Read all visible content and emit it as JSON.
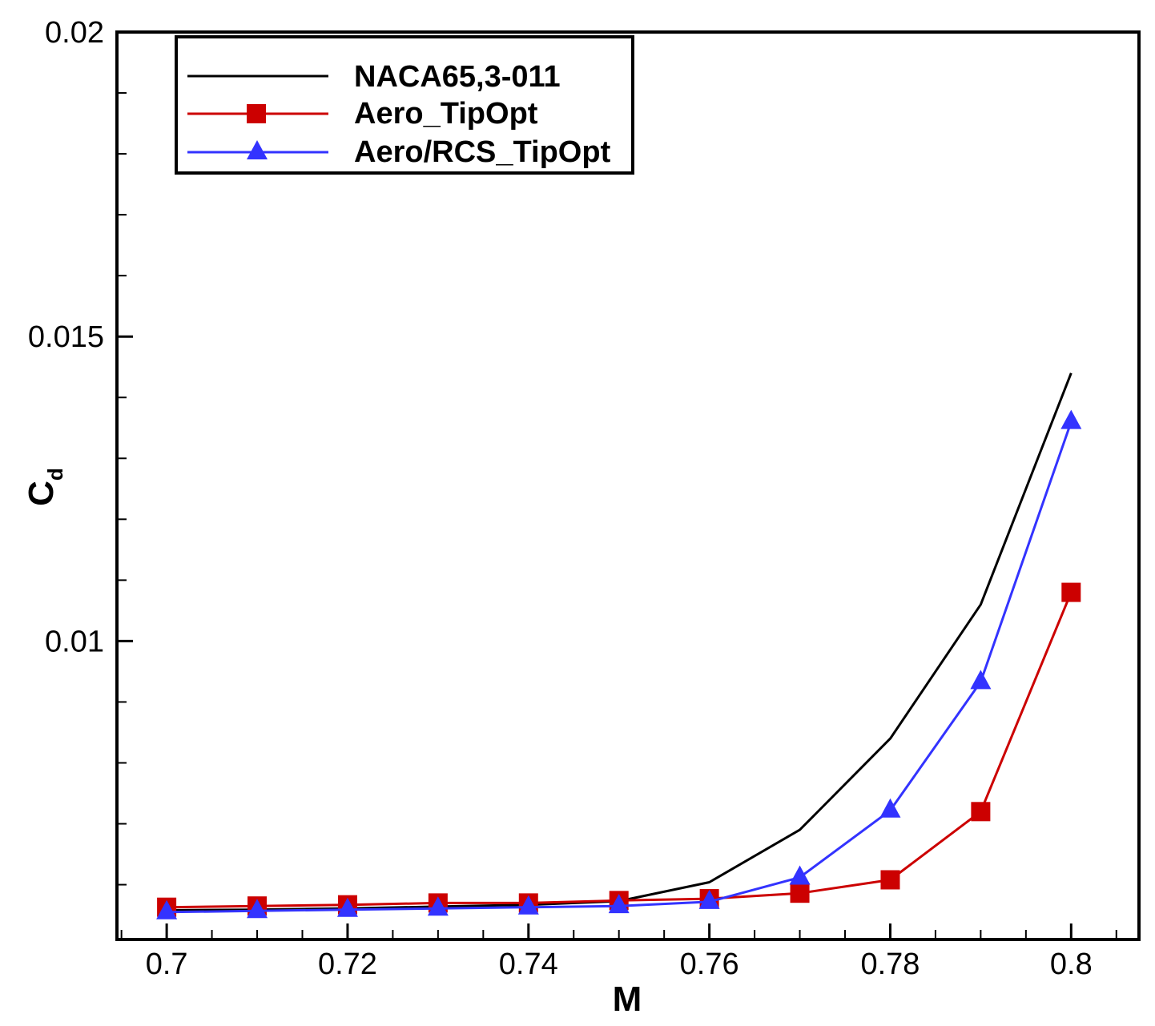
{
  "chart_data": {
    "type": "line",
    "title": "",
    "xlabel": "M",
    "ylabel": "C",
    "ylabel_subscript": "d",
    "xlim": [
      0.6945,
      0.8075
    ],
    "ylim": [
      0.0051,
      0.02
    ],
    "x_ticks": [
      0.7,
      0.72,
      0.74,
      0.76,
      0.78,
      0.8
    ],
    "x_tick_labels": [
      "0.7",
      "0.72",
      "0.74",
      "0.76",
      "0.78",
      "0.8"
    ],
    "y_ticks": [
      0.01,
      0.015,
      0.02
    ],
    "y_tick_labels": [
      "0.01",
      "0.015",
      "0.02"
    ],
    "grid": false,
    "legend_position": "top-left",
    "series": [
      {
        "name": "NACA65,3-011",
        "color": "#000000",
        "marker": "none",
        "x": [
          0.7,
          0.71,
          0.72,
          0.73,
          0.74,
          0.75,
          0.76,
          0.77,
          0.78,
          0.79,
          0.8
        ],
        "y": [
          0.00558,
          0.00559,
          0.00561,
          0.00564,
          0.00567,
          0.00573,
          0.00604,
          0.0069,
          0.0084,
          0.0106,
          0.0144
        ]
      },
      {
        "name": "Aero_TipOpt",
        "color": "#cc0000",
        "marker": "square",
        "x": [
          0.7,
          0.71,
          0.72,
          0.73,
          0.74,
          0.75,
          0.76,
          0.77,
          0.78,
          0.79,
          0.8
        ],
        "y": [
          0.00563,
          0.00565,
          0.00567,
          0.0057,
          0.0057,
          0.00574,
          0.00577,
          0.00586,
          0.00608,
          0.0072,
          0.0108
        ]
      },
      {
        "name": "Aero/RCS_TipOpt",
        "color": "#3333ff",
        "marker": "triangle",
        "x": [
          0.7,
          0.71,
          0.72,
          0.73,
          0.74,
          0.75,
          0.76,
          0.77,
          0.78,
          0.79,
          0.8
        ],
        "y": [
          0.00555,
          0.00557,
          0.00559,
          0.00561,
          0.00563,
          0.00565,
          0.00572,
          0.00612,
          0.00722,
          0.00933,
          0.0136
        ]
      }
    ]
  }
}
